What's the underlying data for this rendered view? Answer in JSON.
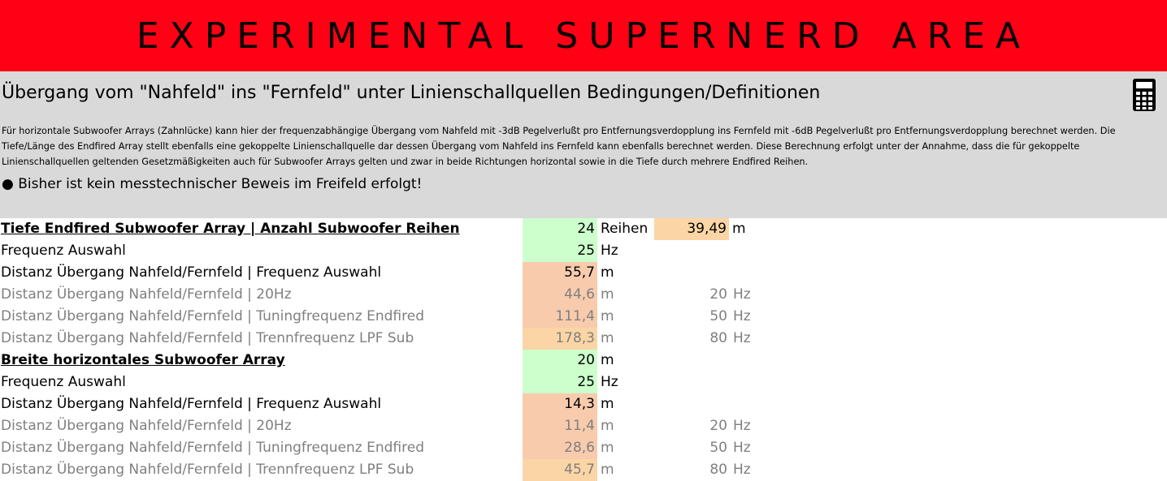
{
  "banner": {
    "title": "EXPERIMENTAL SUPERNERD AREA"
  },
  "info": {
    "subtitle": "Übergang vom \"Nahfeld\" ins \"Fernfeld\" unter Linienschallquellen Bedingungen/Definitionen",
    "description": "Für horizontale Subwoofer Arrays (Zahnlücke) kann hier der frequenzabhängige Übergang vom Nahfeld mit -3dB Pegelverlußt pro Entfernungsverdopplung ins Fernfeld mit -6dB Pegelverlußt pro Entfernungsverdopplung berechnet werden. Die Tiefe/Länge des Endfired Array stellt ebenfalls eine gekoppelte Linienschallquelle dar dessen Übergang vom Nahfeld ins Fernfeld kann ebenfalls berechnet werden. Diese Berechnung erfolgt unter der Annahme, dass die für gekoppelte Linienschallquellen geltenden Gesetzmäßigkeiten auch für Subwoofer Arrays gelten und zwar in beide Richtungen horizontal sowie in die Tiefe durch mehrere Endfired Reihen.",
    "note": "● Bisher ist kein messtechnischer Beweis im Freifeld erfolgt!",
    "icon": "calculator-icon"
  },
  "rows": [
    {
      "label": "Tiefe Endfired Subwoofer Array | Anzahl Subwoofer Reihen",
      "value": "24",
      "unit": "Reihen",
      "extra_value": "39,49",
      "extra_unit": "m"
    },
    {
      "label": "Frequenz Auswahl",
      "value": "25",
      "unit": "Hz"
    },
    {
      "label": "Distanz Übergang Nahfeld/Fernfeld | Frequenz Auswahl",
      "value": "55,7",
      "unit": "m"
    },
    {
      "label": "Distanz Übergang Nahfeld/Fernfeld | 20Hz",
      "value": "44,6",
      "unit": "m",
      "freq": "20",
      "freq_unit": "Hz"
    },
    {
      "label": "Distanz Übergang Nahfeld/Fernfeld | Tuningfrequenz Endfired",
      "value": "111,4",
      "unit": "m",
      "freq": "50",
      "freq_unit": "Hz"
    },
    {
      "label": "Distanz Übergang Nahfeld/Fernfeld | Trennfrequenz LPF Sub",
      "value": "178,3",
      "unit": "m",
      "freq": "80",
      "freq_unit": "Hz"
    },
    {
      "label": "Breite horizontales Subwoofer Array",
      "value": "20",
      "unit": "m"
    },
    {
      "label": "Frequenz Auswahl",
      "value": "25",
      "unit": "Hz"
    },
    {
      "label": "Distanz Übergang Nahfeld/Fernfeld | Frequenz Auswahl",
      "value": "14,3",
      "unit": "m"
    },
    {
      "label": "Distanz Übergang Nahfeld/Fernfeld | 20Hz",
      "value": "11,4",
      "unit": "m",
      "freq": "20",
      "freq_unit": "Hz"
    },
    {
      "label": "Distanz Übergang Nahfeld/Fernfeld | Tuningfrequenz Endfired",
      "value": "28,6",
      "unit": "m",
      "freq": "50",
      "freq_unit": "Hz"
    },
    {
      "label": "Distanz Übergang Nahfeld/Fernfeld | Trennfrequenz LPF Sub",
      "value": "45,7",
      "unit": "m",
      "freq": "80",
      "freq_unit": "Hz"
    }
  ],
  "colors": {
    "banner": "#ff0015",
    "info_bg": "#d9d9d9",
    "input_cell": "#ccffcc",
    "result_cell": "#f8cbad",
    "high_cell": "#fbd5a5",
    "muted_text": "#7f7f7f"
  }
}
